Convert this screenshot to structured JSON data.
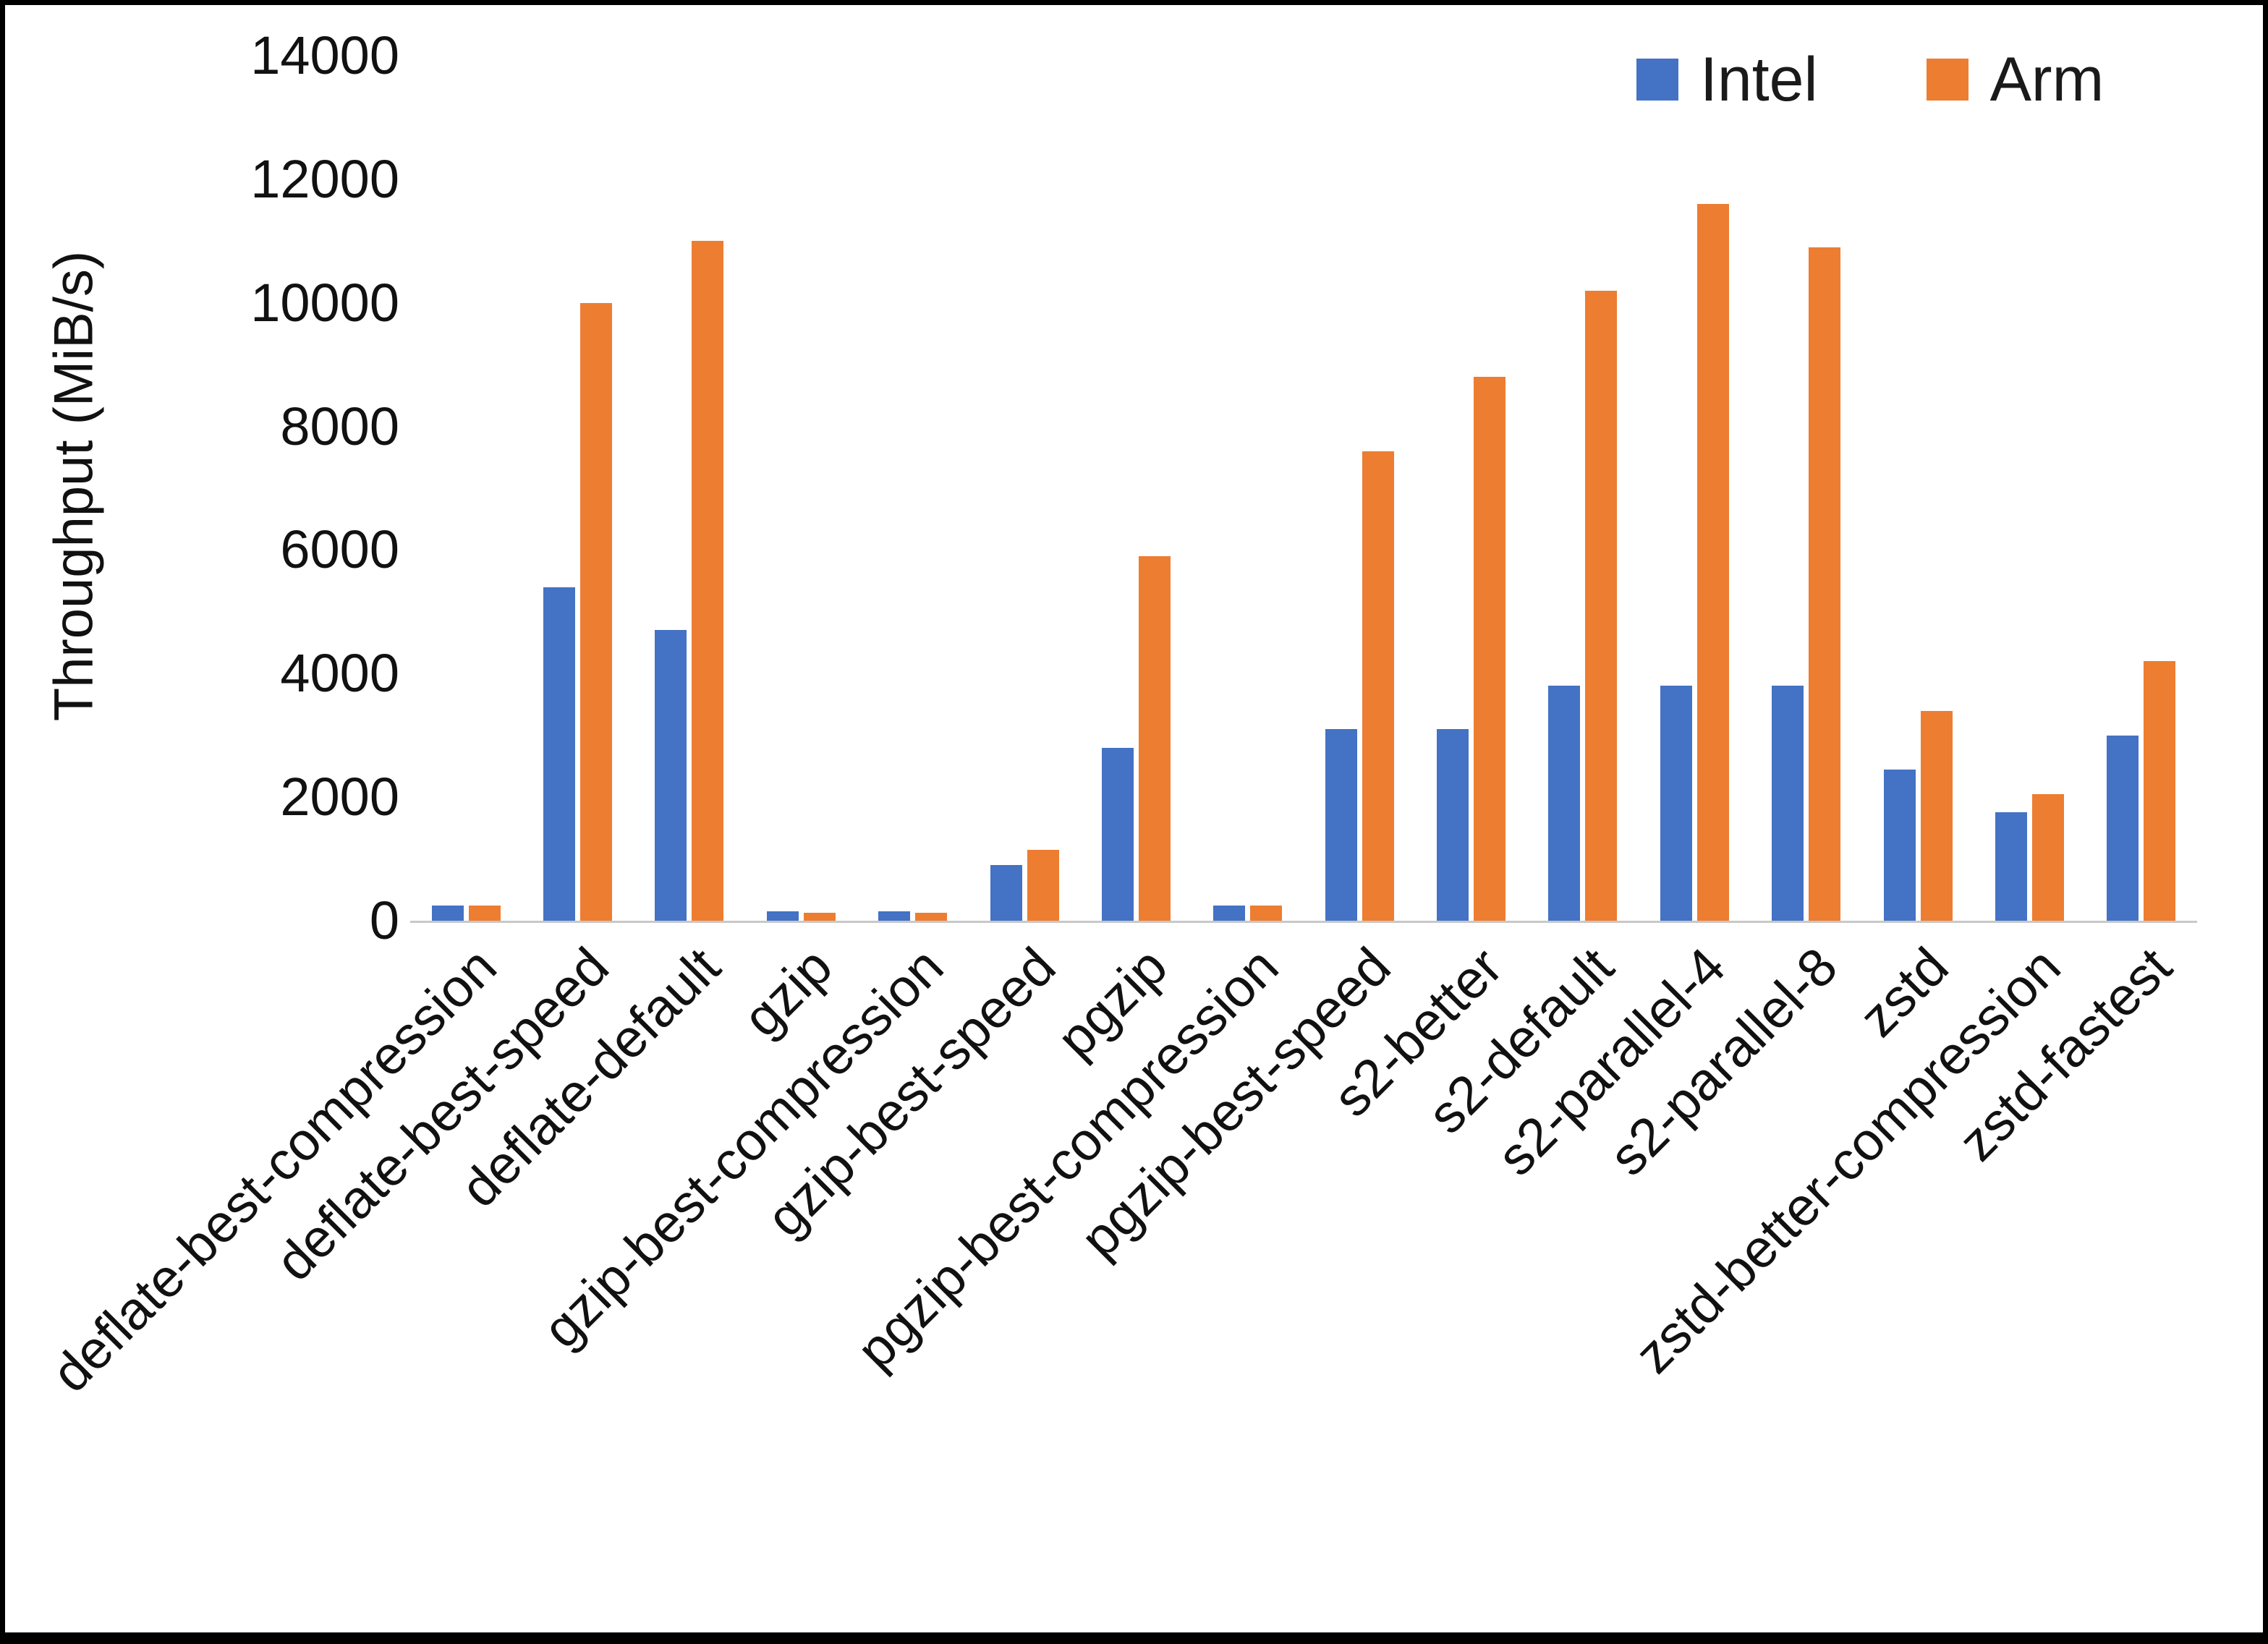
{
  "chart_data": {
    "type": "bar",
    "title": "",
    "xlabel": "",
    "ylabel": "Throughput (MiB/s)",
    "ylim": [
      0,
      14000
    ],
    "yticks": [
      0,
      2000,
      4000,
      6000,
      8000,
      10000,
      12000,
      14000
    ],
    "grid": false,
    "legend_position": "top-right",
    "categories": [
      "deflate-best-compression",
      "deflate-best-speed",
      "deflate-default",
      "gzip",
      "gzip-best-compression",
      "gzip-best-speed",
      "pgzip",
      "pgzip-best-compression",
      "pgzip-best-speed",
      "s2-better",
      "s2-default",
      "s2-parallel-4",
      "s2-parallel-8",
      "zstd",
      "zstd-better-compression",
      "zstd-fastest"
    ],
    "series": [
      {
        "name": "Intel",
        "color": "#4472C4",
        "values": [
          250,
          5400,
          4700,
          150,
          150,
          900,
          2800,
          250,
          3100,
          3100,
          3800,
          3800,
          3800,
          2450,
          1750,
          3000
        ]
      },
      {
        "name": "Arm",
        "color": "#ED7D31",
        "values": [
          250,
          10000,
          11000,
          130,
          130,
          1150,
          5900,
          250,
          7600,
          8800,
          10200,
          11600,
          10900,
          3400,
          2050,
          4200
        ]
      }
    ]
  }
}
